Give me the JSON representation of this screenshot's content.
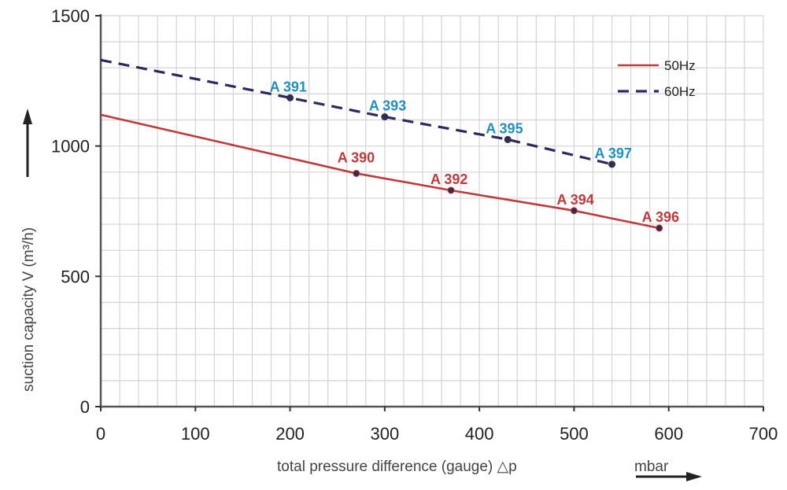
{
  "chart_data": {
    "type": "line",
    "title": "",
    "xlabel": "total pressure difference (gauge) △p",
    "xunit": "mbar",
    "ylabel": "suction capacity V (m³/h)",
    "xlim": [
      0,
      700
    ],
    "ylim": [
      0,
      1500
    ],
    "xticks": [
      0,
      100,
      200,
      300,
      400,
      500,
      600,
      700
    ],
    "yticks": [
      0,
      500,
      1000,
      1500
    ],
    "xtick_labels": [
      "0",
      "100",
      "200",
      "300",
      "400",
      "500",
      "600",
      "700"
    ],
    "ytick_labels": [
      "0",
      "500",
      "1000",
      "1500"
    ],
    "minor_grid_x_step": 20,
    "minor_grid_y_step": 100,
    "grid": true,
    "legend_position": "top-right",
    "series": [
      {
        "name": "50Hz",
        "style": "solid",
        "color": "#c0393b",
        "label_color": "#c0393b",
        "x": [
          0,
          270,
          370,
          500,
          590
        ],
        "y": [
          1120,
          895,
          830,
          752,
          685
        ],
        "points": [
          {
            "x": 270,
            "y": 895,
            "label": "A 390"
          },
          {
            "x": 370,
            "y": 830,
            "label": "A 392"
          },
          {
            "x": 500,
            "y": 752,
            "label": "A 394"
          },
          {
            "x": 590,
            "y": 685,
            "label": "A 396"
          }
        ]
      },
      {
        "name": "60Hz",
        "style": "dashed",
        "color": "#2b2a5c",
        "label_color": "#1f8fc4",
        "x": [
          0,
          200,
          300,
          430,
          540
        ],
        "y": [
          1330,
          1185,
          1112,
          1025,
          930
        ],
        "points": [
          {
            "x": 200,
            "y": 1185,
            "label": "A 391"
          },
          {
            "x": 300,
            "y": 1112,
            "label": "A 393"
          },
          {
            "x": 430,
            "y": 1025,
            "label": "A 395"
          },
          {
            "x": 540,
            "y": 930,
            "label": "A 397"
          }
        ]
      }
    ]
  }
}
